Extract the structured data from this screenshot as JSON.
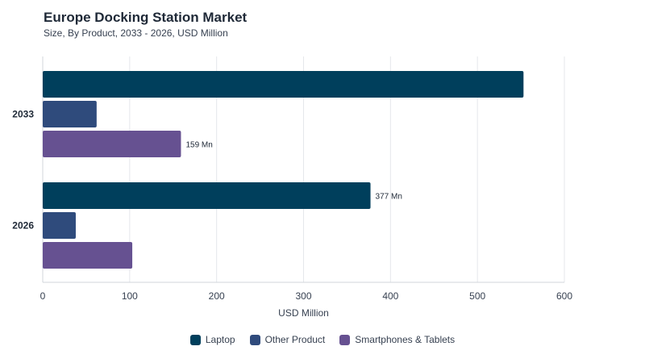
{
  "chart_data": {
    "type": "bar",
    "orientation": "horizontal",
    "title": "Europe Docking Station Market",
    "subtitle": "Size, By Product, 2033 - 2026, USD Million",
    "xlabel": "USD Million",
    "xlim": [
      0,
      600
    ],
    "xticks": [
      "0",
      "100",
      "200",
      "300",
      "400",
      "500",
      "600"
    ],
    "categories": [
      "2033",
      "2026"
    ],
    "grid": true,
    "legend_position": "bottom-center",
    "series": [
      {
        "name": "Laptop",
        "color": "#003f5c",
        "values": [
          553,
          377
        ]
      },
      {
        "name": "Other Product",
        "color": "#2f4b7c",
        "values": [
          62,
          38
        ]
      },
      {
        "name": "Smartphones & Tablets",
        "color": "#665191",
        "values": [
          159,
          103
        ]
      }
    ],
    "data_labels": [
      {
        "series": 2,
        "category": 0,
        "text": "159 Mn"
      },
      {
        "series": 0,
        "category": 1,
        "text": "377 Mn"
      }
    ]
  }
}
